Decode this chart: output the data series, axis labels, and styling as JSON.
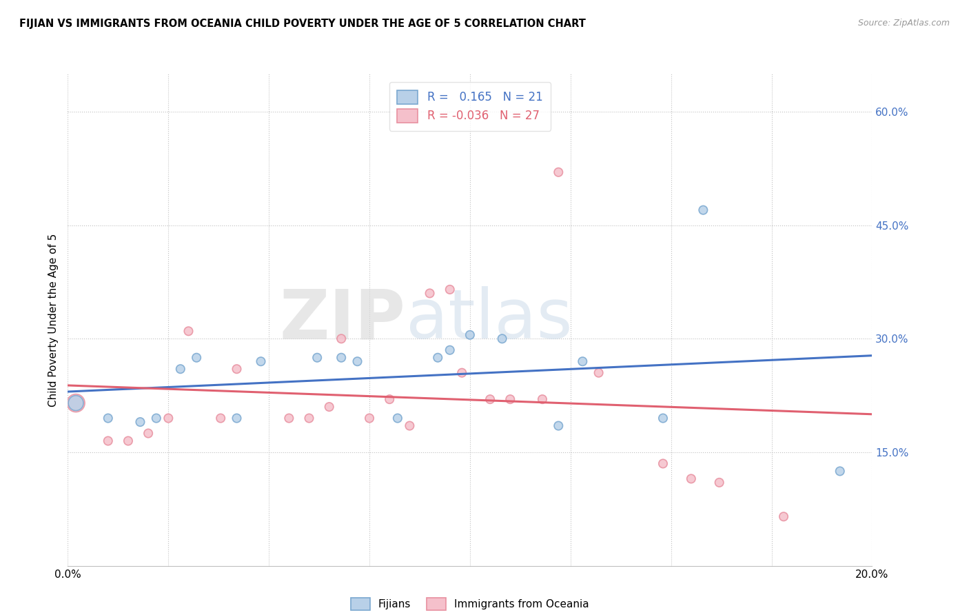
{
  "title": "FIJIAN VS IMMIGRANTS FROM OCEANIA CHILD POVERTY UNDER THE AGE OF 5 CORRELATION CHART",
  "source": "Source: ZipAtlas.com",
  "ylabel": "Child Poverty Under the Age of 5",
  "legend_labels": [
    "Fijians",
    "Immigrants from Oceania"
  ],
  "r_fijian": 0.165,
  "n_fijian": 21,
  "r_oceania": -0.036,
  "n_oceania": 27,
  "xmin": 0.0,
  "xmax": 0.2,
  "ymin": 0.0,
  "ymax": 0.65,
  "yticks": [
    0.15,
    0.3,
    0.45,
    0.6
  ],
  "ytick_labels": [
    "15.0%",
    "30.0%",
    "45.0%",
    "60.0%"
  ],
  "xticks": [
    0.0,
    0.025,
    0.05,
    0.075,
    0.1,
    0.125,
    0.15,
    0.175,
    0.2
  ],
  "xtick_labels": [
    "0.0%",
    "",
    "",
    "",
    "",
    "",
    "",
    "",
    "20.0%"
  ],
  "color_fijian": "#b8d0e8",
  "color_oceania": "#f5c0cb",
  "edge_fijian": "#7aa8d0",
  "edge_oceania": "#e890a0",
  "line_color_fijian": "#4472c4",
  "line_color_oceania": "#e06070",
  "watermark_zip": "ZIP",
  "watermark_atlas": "atlas",
  "fijian_x": [
    0.002,
    0.01,
    0.018,
    0.022,
    0.028,
    0.032,
    0.042,
    0.048,
    0.062,
    0.068,
    0.072,
    0.082,
    0.092,
    0.095,
    0.1,
    0.108,
    0.122,
    0.128,
    0.148,
    0.158,
    0.192
  ],
  "fijian_y": [
    0.215,
    0.195,
    0.19,
    0.195,
    0.26,
    0.275,
    0.195,
    0.27,
    0.275,
    0.275,
    0.27,
    0.195,
    0.275,
    0.285,
    0.305,
    0.3,
    0.185,
    0.27,
    0.195,
    0.47,
    0.125
  ],
  "fijian_sizes": [
    250,
    80,
    80,
    80,
    80,
    80,
    80,
    80,
    80,
    80,
    80,
    80,
    80,
    80,
    80,
    80,
    80,
    80,
    80,
    80,
    80
  ],
  "oceania_x": [
    0.002,
    0.01,
    0.015,
    0.02,
    0.025,
    0.03,
    0.038,
    0.042,
    0.055,
    0.06,
    0.065,
    0.068,
    0.075,
    0.08,
    0.085,
    0.09,
    0.095,
    0.098,
    0.105,
    0.11,
    0.118,
    0.122,
    0.132,
    0.148,
    0.155,
    0.162,
    0.178
  ],
  "oceania_y": [
    0.215,
    0.165,
    0.165,
    0.175,
    0.195,
    0.31,
    0.195,
    0.26,
    0.195,
    0.195,
    0.21,
    0.3,
    0.195,
    0.22,
    0.185,
    0.36,
    0.365,
    0.255,
    0.22,
    0.22,
    0.22,
    0.52,
    0.255,
    0.135,
    0.115,
    0.11,
    0.065
  ],
  "oceania_sizes": [
    350,
    80,
    80,
    80,
    80,
    80,
    80,
    80,
    80,
    80,
    80,
    80,
    80,
    80,
    80,
    80,
    80,
    80,
    80,
    80,
    80,
    80,
    80,
    80,
    80,
    80,
    80
  ]
}
